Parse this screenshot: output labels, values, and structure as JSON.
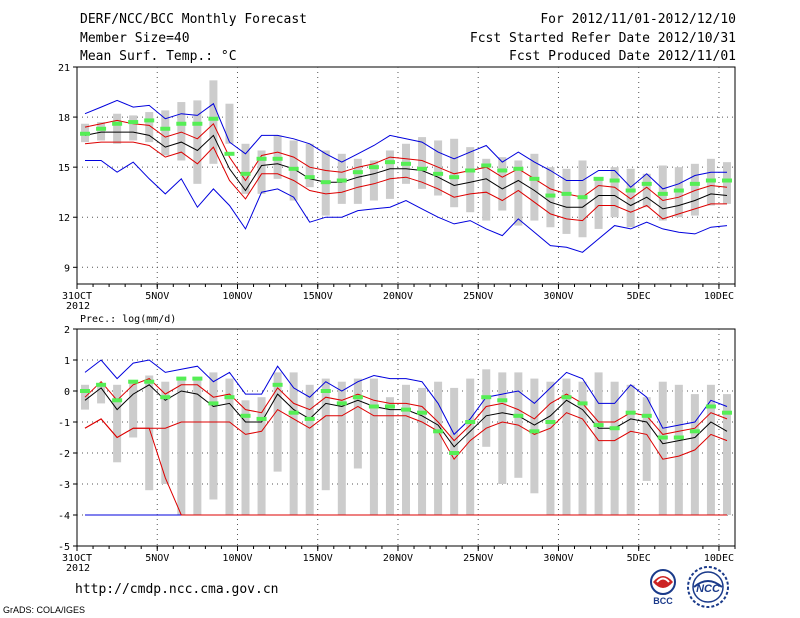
{
  "header": {
    "title": "DERF/NCC/BCC Monthly Forecast",
    "member_size": "Member Size=40",
    "variable": "Mean Surf. Temp.: °C",
    "period": "For 2012/11/01-2012/12/10",
    "start_date": "Fcst Started Refer Date 2012/10/31",
    "produced_date": "Fcst Produced Date 2012/11/01"
  },
  "footer": {
    "url": "http://cmdp.ncc.cma.gov.cn",
    "credit": "GrADS: COLA/IGES",
    "logo1_text": "BCC",
    "logo2_text": "NCC"
  },
  "colors": {
    "box": "#cccccc",
    "bar": "#55ee55",
    "envelope": "#0000dd",
    "band": "#dd0000",
    "mean": "#000000"
  },
  "chart_data": [
    {
      "type": "line",
      "title": "Mean Surf. Temp.: °C",
      "ylabel": "",
      "xlabel": "",
      "ylim": [
        8,
        21
      ],
      "yticks": [
        9,
        12,
        15,
        18,
        21
      ],
      "xlim": [
        0,
        41
      ],
      "xticks": [
        0,
        5,
        10,
        15,
        20,
        25,
        30,
        35,
        40
      ],
      "xtick_labels": [
        "31OCT",
        "5NOV",
        "10NOV",
        "15NOV",
        "20NOV",
        "25NOV",
        "30NOV",
        "5DEC",
        "10DEC"
      ],
      "year_label": "2012",
      "box_low": [
        16.5,
        16.6,
        16.4,
        16.6,
        16.5,
        15.7,
        15.4,
        14.0,
        15.2,
        16.4,
        13.4,
        13.4,
        14.3,
        13.0,
        13.8,
        12.1,
        12.8,
        12.8,
        13.0,
        13.1,
        14.0,
        13.7,
        13.3,
        12.6,
        12.3,
        11.8,
        12.4,
        11.5,
        11.8,
        11.4,
        11.0,
        10.8,
        11.3,
        12.0,
        11.4,
        12.6,
        11.8,
        12.0,
        12.1,
        12.7,
        12.8
      ],
      "box_high": [
        17.6,
        17.7,
        18.2,
        18.1,
        18.3,
        18.4,
        18.9,
        19.0,
        20.2,
        18.8,
        16.4,
        16.0,
        16.9,
        16.6,
        16.4,
        16.0,
        15.8,
        15.5,
        15.4,
        16.0,
        16.4,
        16.8,
        16.6,
        16.7,
        16.2,
        15.5,
        15.6,
        15.4,
        15.8,
        15.0,
        14.9,
        15.4,
        14.4,
        15.0,
        14.9,
        14.6,
        15.1,
        15.0,
        15.2,
        15.5,
        15.3
      ],
      "bar": [
        17.0,
        17.3,
        17.6,
        17.7,
        17.8,
        17.3,
        17.6,
        17.6,
        17.9,
        15.8,
        14.6,
        15.5,
        15.5,
        14.9,
        14.4,
        14.1,
        14.2,
        14.7,
        15.0,
        15.3,
        15.2,
        14.9,
        14.6,
        14.4,
        14.8,
        15.1,
        14.8,
        14.9,
        14.3,
        13.3,
        13.4,
        13.2,
        14.3,
        14.2,
        13.6,
        14.0,
        13.4,
        13.6,
        14.0,
        14.2,
        14.2
      ],
      "envelope_high": [
        18.2,
        18.6,
        19.0,
        18.6,
        18.7,
        17.9,
        18.2,
        18.1,
        18.8,
        16.5,
        15.8,
        16.9,
        16.9,
        16.7,
        16.4,
        15.8,
        15.3,
        15.8,
        16.3,
        16.9,
        16.7,
        16.5,
        15.9,
        15.5,
        15.9,
        16.3,
        15.3,
        15.9,
        15.3,
        14.8,
        14.2,
        14.2,
        14.8,
        14.8,
        13.8,
        14.6,
        13.7,
        14.0,
        14.5,
        14.7,
        14.7
      ],
      "envelope_low": [
        15.4,
        15.4,
        14.7,
        15.3,
        14.3,
        13.4,
        14.3,
        12.6,
        13.7,
        12.7,
        11.3,
        13.5,
        13.7,
        13.2,
        11.7,
        12.0,
        12.0,
        12.4,
        12.5,
        12.6,
        13.0,
        12.5,
        12.0,
        11.6,
        11.8,
        11.3,
        10.9,
        11.9,
        11.1,
        10.3,
        10.2,
        9.9,
        10.7,
        11.5,
        11.3,
        11.7,
        11.3,
        11.1,
        11.0,
        11.4,
        11.5
      ],
      "band_high": [
        17.4,
        17.6,
        17.8,
        17.6,
        17.5,
        16.8,
        17.1,
        16.7,
        17.6,
        15.6,
        14.2,
        15.7,
        15.9,
        15.6,
        15.0,
        14.8,
        14.7,
        15.0,
        15.2,
        15.6,
        15.5,
        15.4,
        15.0,
        14.6,
        14.8,
        15.0,
        14.4,
        14.9,
        14.3,
        13.7,
        13.4,
        13.2,
        13.9,
        13.8,
        13.1,
        13.8,
        13.0,
        13.2,
        13.6,
        13.9,
        13.8
      ],
      "band_low": [
        16.4,
        16.5,
        16.5,
        16.5,
        16.3,
        15.6,
        15.9,
        15.2,
        16.2,
        14.2,
        13.1,
        14.6,
        14.6,
        14.2,
        13.6,
        13.4,
        13.5,
        13.8,
        14.0,
        14.3,
        14.4,
        14.1,
        13.7,
        13.2,
        13.4,
        13.5,
        13.0,
        13.6,
        12.9,
        12.2,
        11.9,
        11.8,
        12.7,
        12.7,
        12.3,
        12.7,
        11.9,
        12.2,
        12.5,
        12.8,
        12.8
      ],
      "mean": [
        16.9,
        17.1,
        17.1,
        17.1,
        16.9,
        16.2,
        16.5,
        16.0,
        16.9,
        14.9,
        13.6,
        15.1,
        15.2,
        14.9,
        14.3,
        14.1,
        14.1,
        14.4,
        14.6,
        14.9,
        14.9,
        14.8,
        14.4,
        13.9,
        14.1,
        14.3,
        13.7,
        14.2,
        13.6,
        12.9,
        12.6,
        12.6,
        13.3,
        13.3,
        12.7,
        13.2,
        12.5,
        12.7,
        13.0,
        13.4,
        13.3
      ]
    },
    {
      "type": "line",
      "title": "Prec.: log(mm/d)",
      "ylabel": "",
      "xlabel": "",
      "ylim": [
        -5,
        2
      ],
      "yticks": [
        -5,
        -4,
        -3,
        -2,
        -1,
        0,
        1,
        2
      ],
      "xlim": [
        0,
        41
      ],
      "xticks": [
        0,
        5,
        10,
        15,
        20,
        25,
        30,
        35,
        40
      ],
      "xtick_labels": [
        "31OCT",
        "5NOV",
        "10NOV",
        "15NOV",
        "20NOV",
        "25NOV",
        "30NOV",
        "5DEC",
        "10DEC"
      ],
      "year_label": "2012",
      "box_low": [
        -0.6,
        -0.4,
        -2.3,
        -1.5,
        -3.2,
        -3.0,
        -4.0,
        -4.0,
        -3.5,
        -4.0,
        -4.0,
        -4.0,
        -2.6,
        -4.0,
        -4.0,
        -3.2,
        -4.0,
        -2.5,
        -4.0,
        -4.0,
        -4.0,
        -4.0,
        -4.0,
        -4.0,
        -4.0,
        -1.8,
        -3.0,
        -2.8,
        -3.3,
        -4.0,
        -4.0,
        -4.0,
        -4.0,
        -4.0,
        -4.0,
        -2.9,
        -4.0,
        -4.0,
        -4.0,
        -4.0,
        -4.0
      ],
      "box_high": [
        0.2,
        0.2,
        0.2,
        0.3,
        0.5,
        0.3,
        0.4,
        0.4,
        0.6,
        0.4,
        -0.3,
        -0.2,
        0.6,
        0.6,
        0.2,
        0.4,
        0.3,
        0.4,
        0.4,
        -0.2,
        0.2,
        0.1,
        0.3,
        0.1,
        0.4,
        0.7,
        0.6,
        0.6,
        0.4,
        0.3,
        0.4,
        0.3,
        0.6,
        0.3,
        0.2,
        -0.2,
        0.3,
        0.2,
        -0.1,
        0.2,
        -0.1
      ],
      "bar": [
        0.0,
        0.2,
        -0.3,
        0.3,
        0.3,
        -0.2,
        0.4,
        0.4,
        -0.4,
        -0.2,
        -0.8,
        -0.9,
        0.2,
        -0.7,
        -0.9,
        0.0,
        -0.4,
        -0.2,
        -0.5,
        -0.5,
        -0.6,
        -0.7,
        -1.3,
        -2.0,
        -1.0,
        -0.2,
        -0.3,
        -0.8,
        -1.3,
        -1.0,
        -0.2,
        -0.4,
        -1.1,
        -1.2,
        -0.7,
        -0.8,
        -1.5,
        -1.5,
        -1.3,
        -0.5,
        -0.7
      ],
      "envelope_high": [
        0.6,
        1.0,
        0.4,
        0.9,
        1.0,
        0.6,
        0.7,
        0.8,
        0.3,
        0.6,
        -0.1,
        -0.1,
        0.8,
        0.1,
        -0.2,
        0.3,
        0.0,
        0.3,
        0.5,
        0.4,
        0.4,
        0.3,
        -0.4,
        -1.4,
        -0.9,
        -0.2,
        -0.1,
        0.0,
        -0.4,
        0.1,
        0.6,
        0.4,
        -0.4,
        -0.4,
        0.2,
        -0.2,
        -1.2,
        -1.1,
        -1.0,
        -0.3,
        -0.5
      ],
      "envelope_low": [
        -4.0,
        -4.0,
        -4.0,
        -4.0,
        -4.0,
        -4.0,
        -4.0,
        -4.0,
        -4.0,
        -4.0,
        -4.0,
        -4.0,
        -4.0,
        -4.0,
        -4.0,
        -4.0,
        -4.0,
        -4.0,
        -4.0,
        -4.0,
        -4.0,
        -4.0,
        -4.0,
        -4.0,
        -4.0,
        -4.0,
        -4.0,
        -4.0,
        -4.0,
        -4.0,
        -4.0,
        -4.0,
        -4.0,
        -4.0,
        -4.0,
        -4.0,
        -4.0,
        -4.0,
        -4.0,
        -4.0,
        -4.0
      ],
      "band_high": [
        -0.2,
        0.3,
        -0.3,
        0.2,
        0.4,
        -0.1,
        0.2,
        0.2,
        -0.2,
        -0.1,
        -0.6,
        -0.7,
        0.1,
        -0.4,
        -0.6,
        -0.2,
        -0.3,
        -0.1,
        -0.3,
        -0.4,
        -0.4,
        -0.5,
        -1.0,
        -1.6,
        -1.1,
        -0.5,
        -0.4,
        -0.6,
        -0.9,
        -0.4,
        -0.1,
        -0.4,
        -1.0,
        -1.0,
        -0.7,
        -0.8,
        -1.4,
        -1.3,
        -1.2,
        -0.7,
        -0.9
      ],
      "band_low": [
        -1.2,
        -0.9,
        -1.5,
        -1.2,
        -1.2,
        -2.8,
        -4.0,
        -4.0,
        -4.0,
        -4.0,
        -4.0,
        -4.0,
        -4.0,
        -4.0,
        -4.0,
        -4.0,
        -4.0,
        -4.0,
        -4.0,
        -4.0,
        -4.0,
        -4.0,
        -4.0,
        -4.0,
        -4.0,
        -4.0,
        -4.0,
        -4.0,
        -4.0,
        -4.0,
        -4.0,
        -4.0,
        -4.0,
        -4.0,
        -4.0,
        -4.0,
        -4.0,
        -4.0,
        -4.0,
        -4.0,
        -4.0
      ],
      "band_low_lit": [
        -1.2,
        -0.9,
        -1.5,
        -1.2,
        -1.2,
        -1.2,
        -1.0,
        -1.0,
        -1.0,
        -1.0,
        -1.4,
        -1.3,
        -0.6,
        -0.9,
        -1.2,
        -0.8,
        -0.8,
        -0.5,
        -0.8,
        -0.8,
        -0.8,
        -1.0,
        -1.3,
        -2.2,
        -1.6,
        -1.2,
        -1.0,
        -1.1,
        -1.4,
        -1.2,
        -0.7,
        -0.9,
        -1.6,
        -1.6,
        -1.3,
        -1.4,
        -2.2,
        -2.1,
        -1.9,
        -1.4,
        -1.6
      ],
      "mean": [
        -0.3,
        0.1,
        -0.6,
        -0.1,
        0.2,
        -0.3,
        0.0,
        -0.1,
        -0.5,
        -0.4,
        -1.0,
        -1.0,
        -0.1,
        -0.6,
        -0.9,
        -0.4,
        -0.5,
        -0.3,
        -0.5,
        -0.6,
        -0.6,
        -0.8,
        -1.1,
        -1.8,
        -1.3,
        -0.8,
        -0.7,
        -0.8,
        -1.1,
        -0.8,
        -0.3,
        -0.6,
        -1.2,
        -1.2,
        -0.9,
        -1.0,
        -1.7,
        -1.6,
        -1.5,
        -1.0,
        -1.3
      ]
    }
  ]
}
